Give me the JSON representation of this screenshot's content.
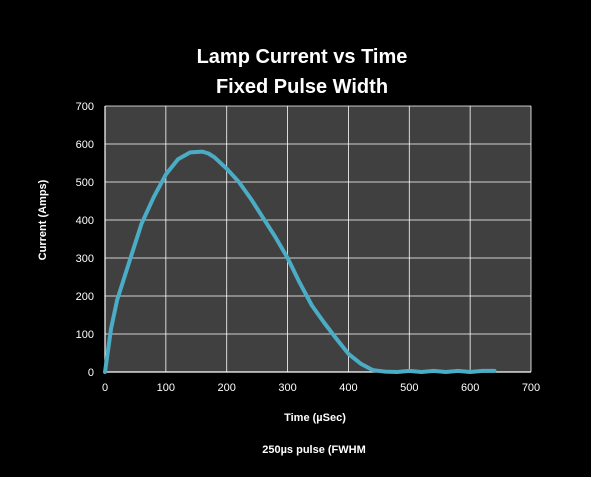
{
  "chart_data": {
    "type": "line",
    "title": [
      "Lamp Current vs Time",
      "Fixed Pulse Width"
    ],
    "xlabel": "Time (µSec)",
    "ylabel": "Current (Amps)",
    "footnote": "250µs pulse  (FWHM",
    "xlim": [
      0,
      700
    ],
    "ylim": [
      0,
      700
    ],
    "xticks": [
      0,
      100,
      200,
      300,
      400,
      500,
      600,
      700
    ],
    "yticks": [
      0,
      100,
      200,
      300,
      400,
      500,
      600,
      700
    ],
    "grid": true,
    "legend": "none",
    "colors": {
      "background": "#000000",
      "plot_area": "#404040",
      "grid": "#ffffff",
      "line": "#4bacc6",
      "text": "#ffffff"
    },
    "series": [
      {
        "x": [
          0,
          10,
          20,
          40,
          60,
          80,
          100,
          120,
          140,
          160,
          170,
          180,
          200,
          220,
          240,
          260,
          280,
          300,
          320,
          340,
          360,
          380,
          400,
          420,
          440,
          460,
          480,
          500,
          520,
          540,
          560,
          580,
          600,
          620,
          640
        ],
        "y": [
          0,
          115,
          190,
          290,
          390,
          460,
          520,
          560,
          578,
          580,
          575,
          565,
          535,
          500,
          455,
          405,
          355,
          300,
          235,
          175,
          130,
          88,
          48,
          22,
          5,
          1,
          0,
          3,
          0,
          3,
          0,
          3,
          0,
          3,
          3
        ]
      }
    ]
  }
}
